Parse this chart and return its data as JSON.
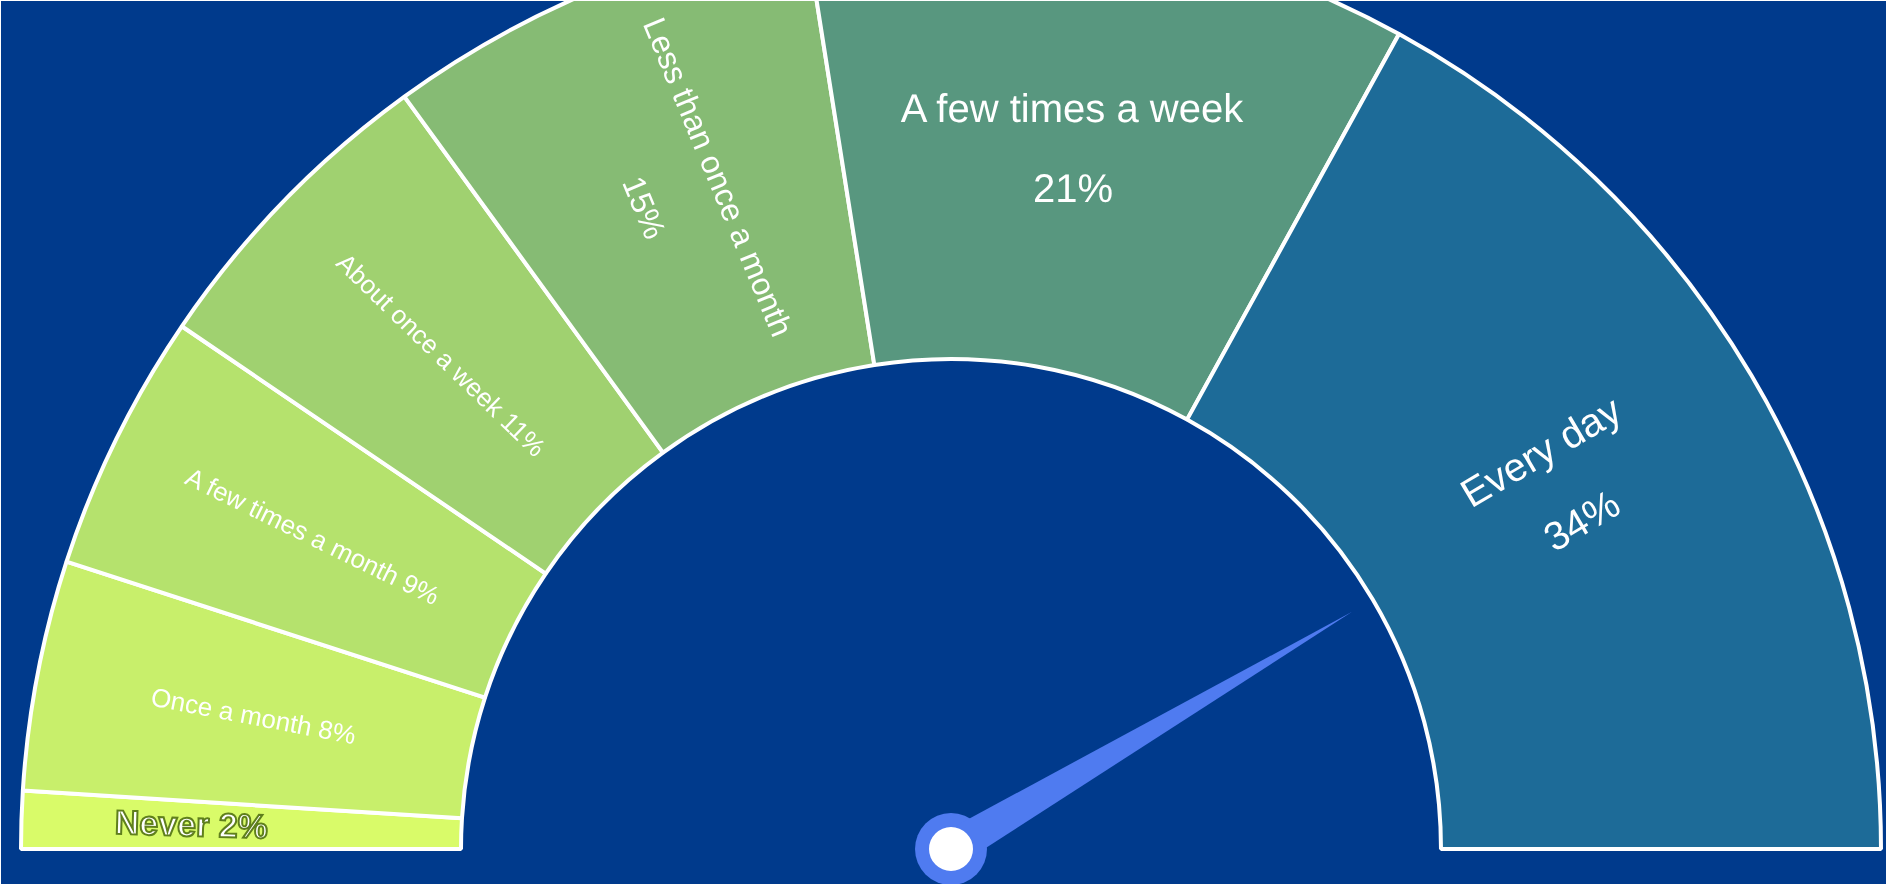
{
  "chart_data": {
    "type": "donut",
    "categories": [
      "Never",
      "Once a month",
      "A few times a month",
      "About once a week",
      "Less than once a month",
      "A few times a week",
      "Every day"
    ],
    "values": [
      2,
      8,
      9,
      11,
      15,
      21,
      34
    ],
    "colors": [
      "#d9fb69",
      "#c8ef6b",
      "#b5e26d",
      "#a0d170",
      "#86bb74",
      "#58977f",
      "#1d6b98"
    ],
    "value_labels": [
      "2%",
      "8%",
      "9%",
      "11%",
      "15%",
      "21%",
      "34%"
    ],
    "needle": "Every day"
  }
}
